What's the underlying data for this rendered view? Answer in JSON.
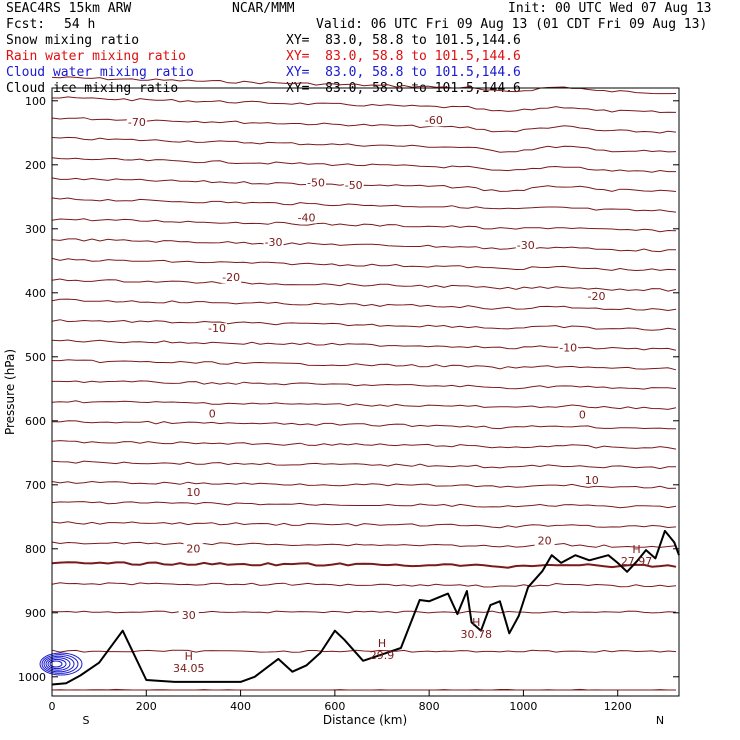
{
  "header": {
    "model": "SEAC4RS 15km ARW",
    "org": "NCAR/MMM",
    "init": "Init: 00 UTC Wed 07 Aug 13",
    "fcst_label": "Fcst:",
    "fcst_value": "54 h",
    "valid": "Valid: 06 UTC Fri 09 Aug 13 (01 CDT Fri 09 Aug 13)",
    "fields": [
      {
        "name": "Snow mixing ratio",
        "xy": "XY=  83.0, 58.8 to 101.5,144.6",
        "color": "#000000"
      },
      {
        "name": "Rain water mixing ratio",
        "xy": "XY=  83.0, 58.8 to 101.5,144.6",
        "color": "#e01010"
      },
      {
        "name": "Cloud water mixing ratio",
        "xy": "XY=  83.0, 58.8 to 101.5,144.6",
        "color": "#1a1ad0"
      },
      {
        "name": "Cloud ice mixing ratio",
        "xy": "XY=  83.0, 58.8 to 101.5,144.6",
        "color": "#000000"
      }
    ]
  },
  "chart_data": {
    "type": "line",
    "xlabel": "Distance (km)",
    "ylabel": "Pressure (hPa)",
    "xlim": [
      0,
      1330
    ],
    "ylim": [
      1030,
      80
    ],
    "x_ticks": [
      0,
      200,
      400,
      600,
      800,
      1000,
      1200
    ],
    "y_ticks": [
      100,
      200,
      300,
      400,
      500,
      600,
      700,
      800,
      900,
      1000
    ],
    "x_end_labels": {
      "left": "S",
      "right": "N"
    },
    "contour_color": "#7a1a1a",
    "terrain_color": "#000000",
    "temperature_labels": [
      {
        "text": "-70",
        "x": 180,
        "p": 138
      },
      {
        "text": "-60",
        "x": 810,
        "p": 135
      },
      {
        "text": "-50",
        "x": 560,
        "p": 232
      },
      {
        "text": "-50",
        "x": 640,
        "p": 236
      },
      {
        "text": "-40",
        "x": 540,
        "p": 287
      },
      {
        "text": "-30",
        "x": 470,
        "p": 325
      },
      {
        "text": "-30",
        "x": 1005,
        "p": 330
      },
      {
        "text": "-20",
        "x": 380,
        "p": 380
      },
      {
        "text": "-20",
        "x": 1155,
        "p": 410
      },
      {
        "text": "-10",
        "x": 350,
        "p": 460
      },
      {
        "text": "-10",
        "x": 1095,
        "p": 490
      },
      {
        "text": "0",
        "x": 340,
        "p": 593
      },
      {
        "text": "0",
        "x": 1125,
        "p": 595
      },
      {
        "text": "10",
        "x": 300,
        "p": 716
      },
      {
        "text": "10",
        "x": 1145,
        "p": 697
      },
      {
        "text": "20",
        "x": 300,
        "p": 804
      },
      {
        "text": "20",
        "x": 1045,
        "p": 792
      },
      {
        "text": "30",
        "x": 290,
        "p": 908
      }
    ],
    "high_labels": [
      {
        "text": "H",
        "value": "34.05",
        "x": 290,
        "p": 980
      },
      {
        "text": "H",
        "value": "29.9",
        "x": 700,
        "p": 960
      },
      {
        "text": "H",
        "value": "30.78",
        "x": 900,
        "p": 927
      },
      {
        "text": "H",
        "value": "27.97",
        "x": 1240,
        "p": 813
      }
    ],
    "terrain": {
      "x": [
        0,
        30,
        60,
        100,
        150,
        200,
        260,
        300,
        350,
        400,
        430,
        480,
        510,
        540,
        570,
        600,
        620,
        660,
        700,
        740,
        780,
        800,
        840,
        860,
        880,
        890,
        910,
        930,
        950,
        970,
        990,
        1010,
        1040,
        1060,
        1080,
        1110,
        1140,
        1180,
        1200,
        1220,
        1240,
        1260,
        1280,
        1300,
        1320,
        1330
      ],
      "p": [
        1012,
        1010,
        998,
        978,
        928,
        1005,
        1008,
        1008,
        1008,
        1008,
        1000,
        972,
        992,
        982,
        962,
        928,
        942,
        975,
        965,
        955,
        880,
        882,
        870,
        902,
        866,
        915,
        928,
        888,
        882,
        932,
        905,
        860,
        835,
        810,
        822,
        810,
        818,
        810,
        822,
        836,
        820,
        802,
        815,
        772,
        790,
        810
      ]
    },
    "cloud_water_x_range": [
      0,
      60
    ],
    "cloud_water_p_range": [
      960,
      1000
    ]
  }
}
